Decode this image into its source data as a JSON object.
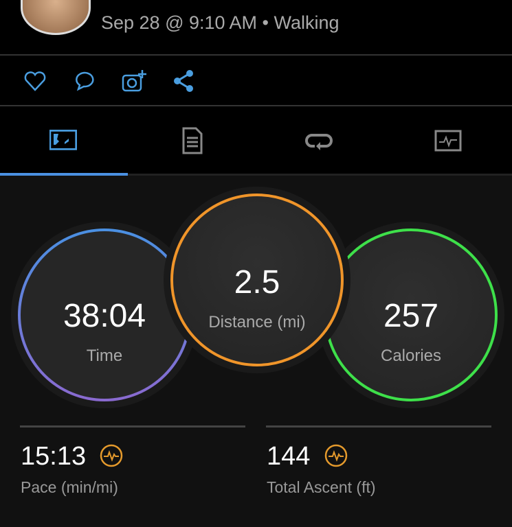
{
  "header": {
    "subtitle": "Sep 28 @ 9:10 AM • Walking"
  },
  "actions": [
    "heart-icon",
    "comment-icon",
    "add-photo-icon",
    "share-icon"
  ],
  "tabs": [
    {
      "icon": "stats-map-icon",
      "active": true
    },
    {
      "icon": "details-list-icon"
    },
    {
      "icon": "laps-icon"
    },
    {
      "icon": "chart-icon"
    }
  ],
  "stats": {
    "time": {
      "value": "38:04",
      "label": "Time",
      "color": "#4a90e2"
    },
    "distance": {
      "value": "2.5",
      "label": "Distance (mi)",
      "color": "#f0952a"
    },
    "calories": {
      "value": "257",
      "label": "Calories",
      "color": "#3ee04a"
    }
  },
  "metrics": [
    {
      "value": "15:13",
      "label": "Pace (min/mi)"
    },
    {
      "value": "144",
      "label": "Total Ascent (ft)"
    }
  ],
  "colors": {
    "accent": "#4a90e2",
    "badge": "#e59a2c"
  }
}
